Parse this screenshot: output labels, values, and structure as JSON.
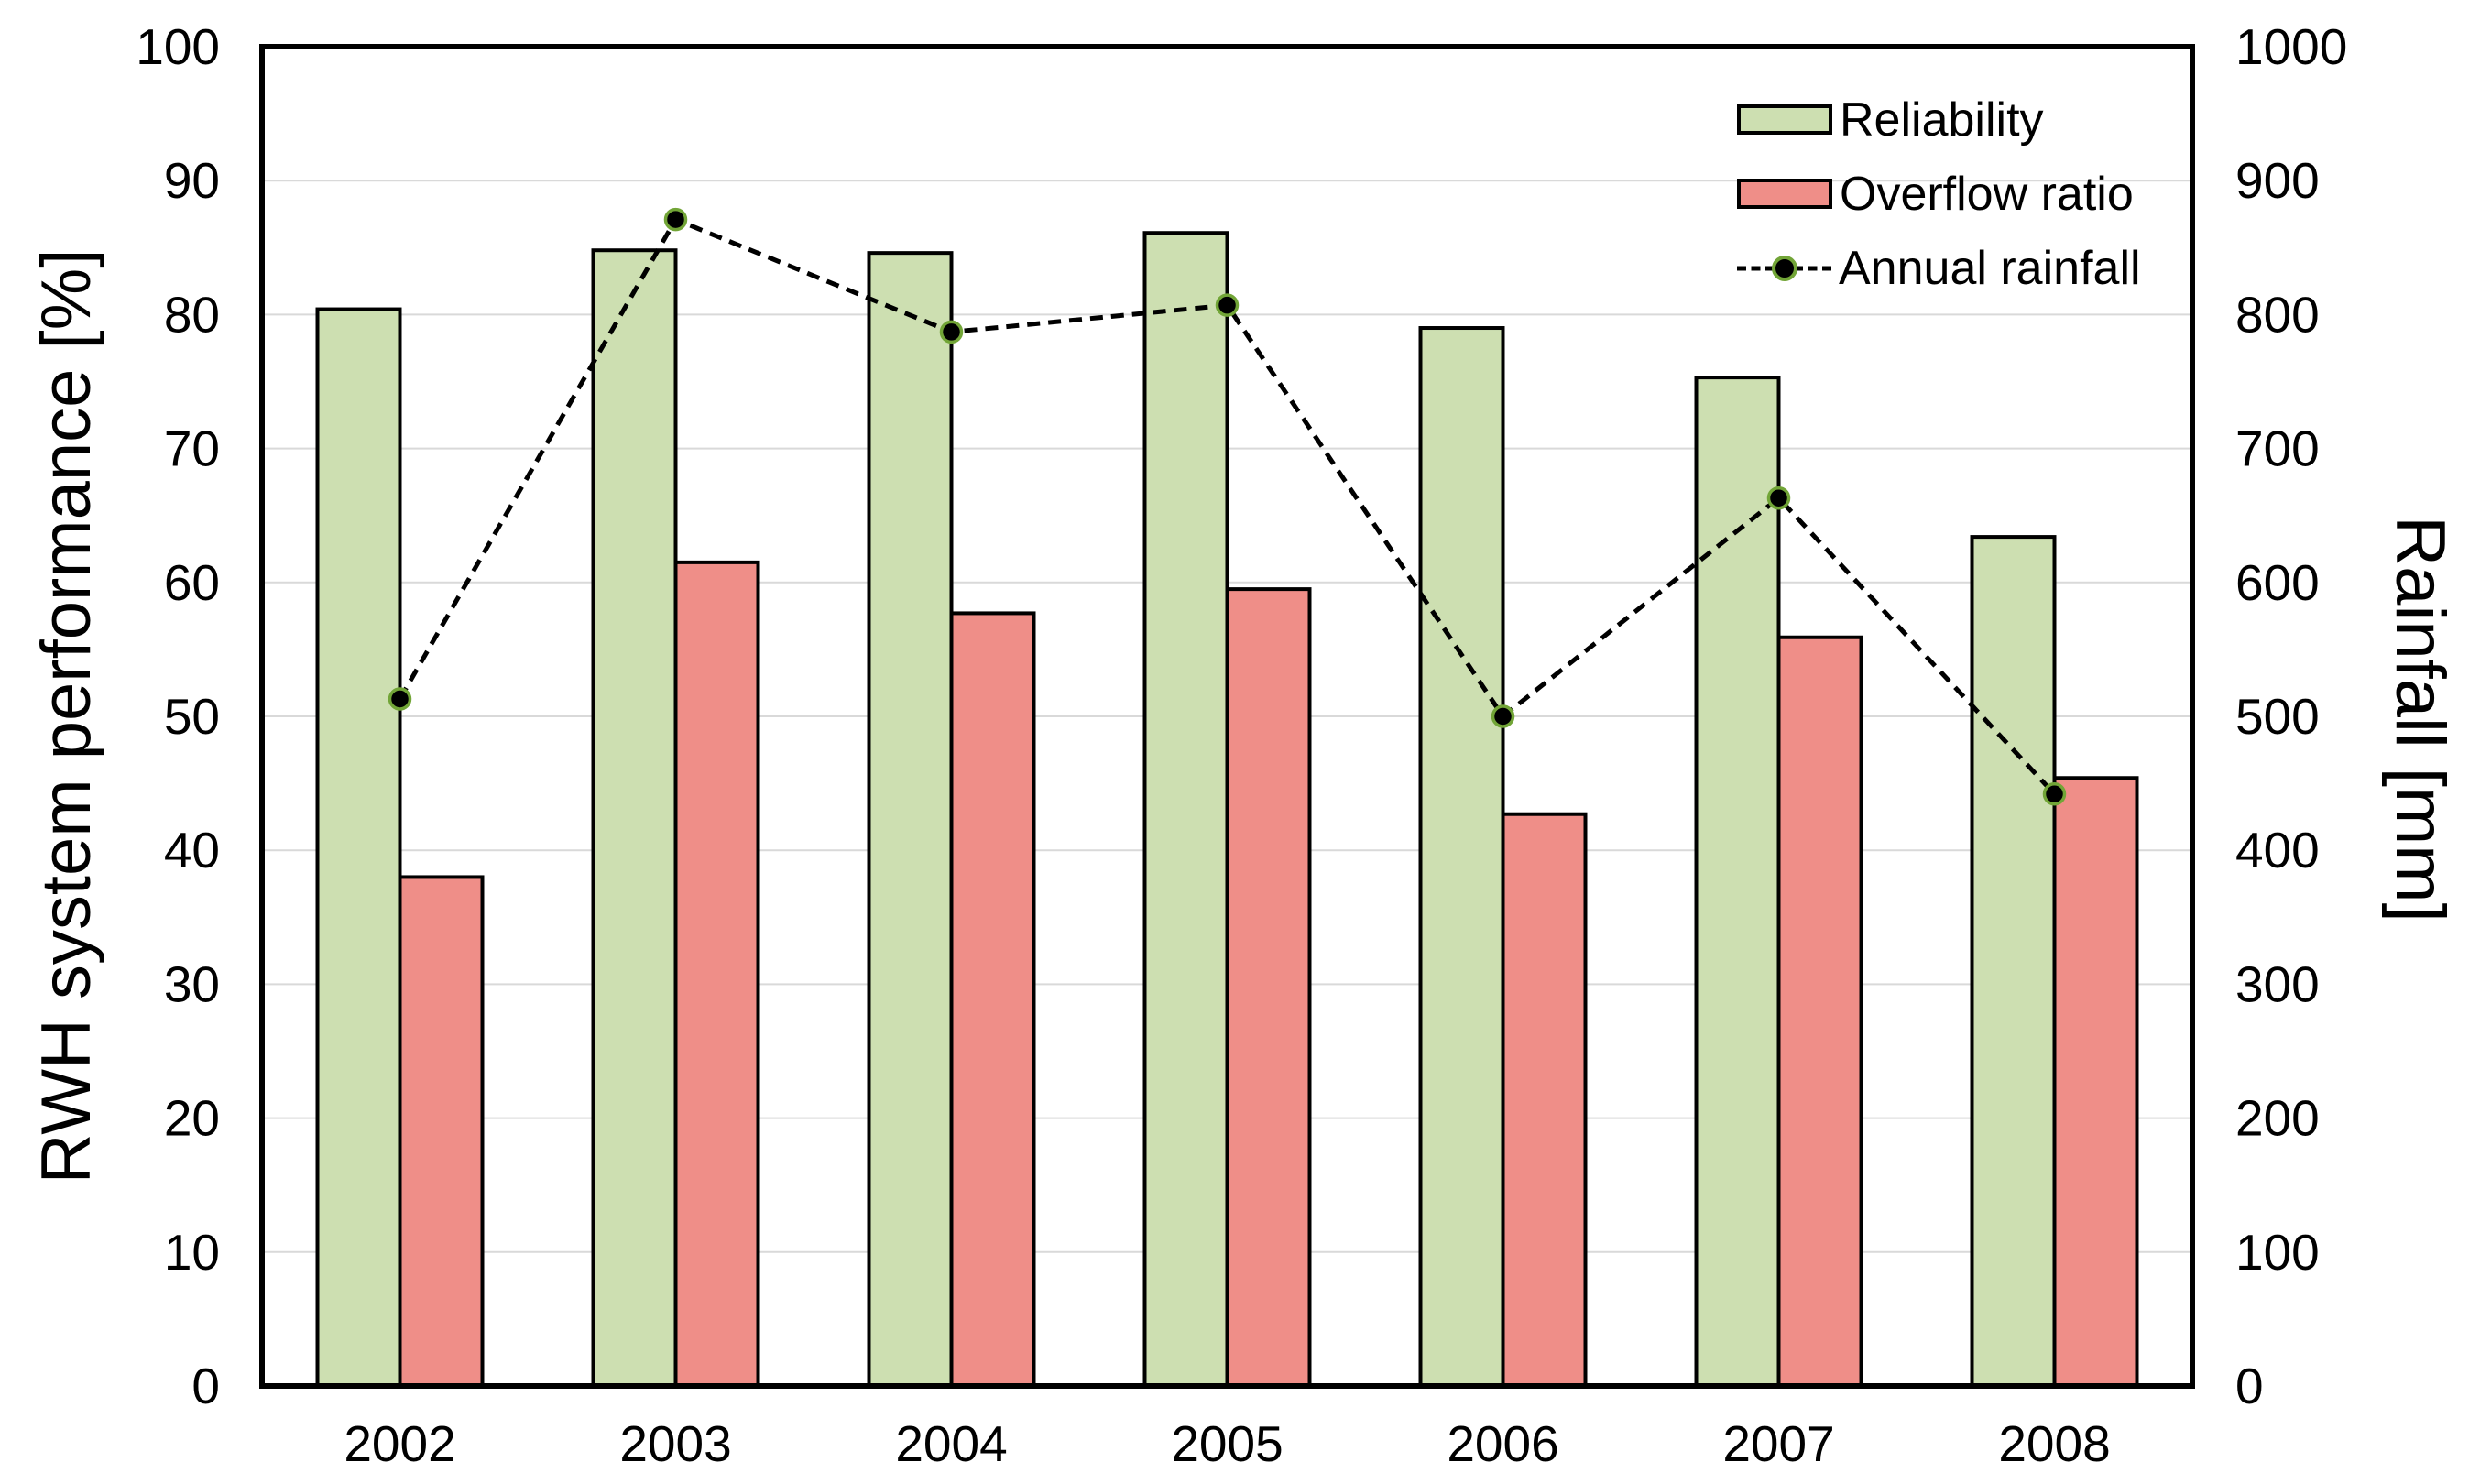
{
  "chart_data": {
    "type": "combo-bar-line",
    "title": "",
    "categories": [
      "2002",
      "2003",
      "2004",
      "2005",
      "2006",
      "2007",
      "2008"
    ],
    "series": [
      {
        "name": "Reliability",
        "type": "bar",
        "axis": "left",
        "color": "#cddfb1",
        "border_color": "#000000",
        "values": [
          80.4,
          84.8,
          84.6,
          86.1,
          79.0,
          75.3,
          63.4
        ]
      },
      {
        "name": "Overflow ratio",
        "type": "bar",
        "axis": "left",
        "color": "#ef8e88",
        "border_color": "#000000",
        "values": [
          38.0,
          61.5,
          57.7,
          59.5,
          42.7,
          55.9,
          45.4
        ]
      },
      {
        "name": "Annual rainfall",
        "type": "line",
        "axis": "right",
        "color": "#000000",
        "line_style": "dashed",
        "marker": "filled-circle",
        "marker_outline": "#72a537",
        "values": [
          513,
          871,
          787,
          807,
          500,
          663,
          442
        ]
      }
    ],
    "left_axis": {
      "title": "RWH system performance [%]",
      "min": 0,
      "max": 100,
      "step": 10,
      "ticks": [
        "0",
        "10",
        "20",
        "30",
        "40",
        "50",
        "60",
        "70",
        "80",
        "90",
        "100"
      ]
    },
    "right_axis": {
      "title": "Rainfall [mm]",
      "min": 0,
      "max": 1000,
      "step": 100,
      "ticks": [
        "0",
        "100",
        "200",
        "300",
        "400",
        "500",
        "600",
        "700",
        "800",
        "900",
        "1000"
      ]
    },
    "legend": {
      "position": "top-right-inside",
      "entries": [
        "Reliability",
        "Overflow ratio",
        "Annual rainfall"
      ]
    },
    "grid": {
      "show": true,
      "color": "#d9d9d9"
    },
    "frame_color": "#000000",
    "background": "#ffffff"
  }
}
